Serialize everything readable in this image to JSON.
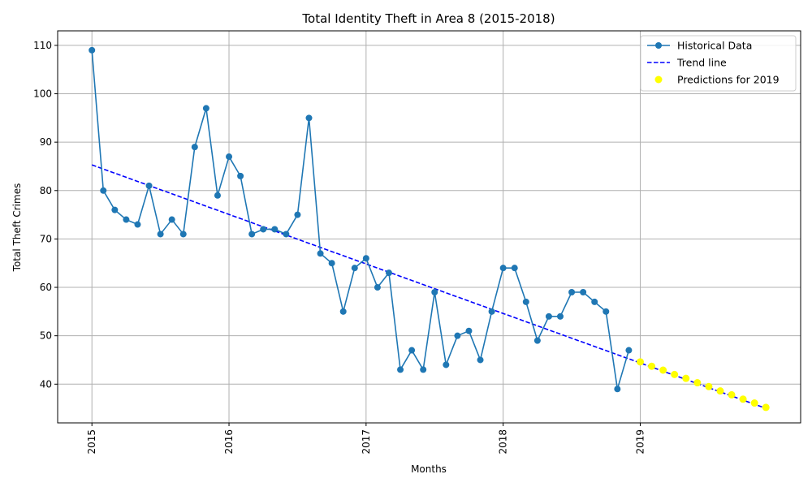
{
  "chart_data": {
    "type": "line",
    "title": "Total Identity Theft in Area 8 (2015-2018)",
    "xlabel": "Months",
    "ylabel": "Total Theft Crimes",
    "ylim": [
      32,
      113
    ],
    "xlim": [
      2014.75,
      2020.17
    ],
    "grid": true,
    "legend_position": "top-right",
    "x_ticks": [
      2015,
      2016,
      2017,
      2018,
      2019
    ],
    "x_tick_labels": [
      "2015",
      "2016",
      "2017",
      "2018",
      "2019"
    ],
    "y_ticks": [
      40,
      50,
      60,
      70,
      80,
      90,
      100,
      110
    ],
    "y_tick_labels": [
      "40",
      "50",
      "60",
      "70",
      "80",
      "90",
      "100",
      "110"
    ],
    "colors": {
      "historical": "#1f77b4",
      "trend": "#0000ff",
      "prediction": "#ffff00",
      "grid": "#b0b0b0"
    },
    "series": [
      {
        "name": "Historical Data",
        "kind": "line-markers",
        "start_year": 2015,
        "values": [
          109,
          80,
          76,
          74,
          73,
          81,
          71,
          74,
          71,
          89,
          97,
          79,
          87,
          83,
          71,
          72,
          72,
          71,
          75,
          95,
          67,
          65,
          55,
          64,
          66,
          60,
          63,
          43,
          47,
          43,
          59,
          44,
          50,
          51,
          45,
          55,
          64,
          64,
          57,
          49,
          54,
          54,
          59,
          59,
          57,
          55,
          39,
          47
        ]
      },
      {
        "name": "Trend line",
        "kind": "dashed-line",
        "x": [
          2015,
          2019.917
        ],
        "values": [
          85.3,
          35.0
        ]
      },
      {
        "name": "Predictions for 2019",
        "kind": "scatter",
        "start_year": 2019,
        "values": [
          44.6,
          43.7,
          42.9,
          42.0,
          41.2,
          40.3,
          39.5,
          38.6,
          37.8,
          36.9,
          36.1,
          35.2
        ]
      }
    ]
  }
}
